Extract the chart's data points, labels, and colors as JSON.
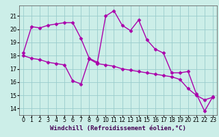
{
  "xlabel": "Windchill (Refroidissement éolien,°C)",
  "hours": [
    0,
    1,
    2,
    3,
    4,
    5,
    6,
    7,
    8,
    9,
    10,
    11,
    12,
    13,
    14,
    15,
    16,
    17,
    18,
    19,
    20,
    21,
    22,
    23
  ],
  "line1": [
    18.2,
    20.2,
    20.1,
    20.3,
    20.4,
    20.5,
    20.5,
    19.3,
    17.8,
    17.5,
    21.0,
    21.4,
    20.3,
    19.9,
    20.7,
    19.2,
    18.5,
    18.2,
    16.7,
    16.7,
    16.8,
    15.1,
    13.8,
    14.9
  ],
  "line2": [
    18.0,
    17.8,
    17.7,
    17.5,
    17.4,
    17.3,
    16.1,
    15.85,
    17.75,
    17.4,
    17.3,
    17.2,
    17.0,
    16.9,
    16.8,
    16.7,
    16.6,
    16.5,
    16.4,
    16.2,
    15.5,
    15.0,
    14.65,
    14.85
  ],
  "line_color": "#aa00aa",
  "bg_color": "#cceee8",
  "grid_color": "#99cccc",
  "ylim_min": 13.5,
  "ylim_max": 21.8,
  "yticks": [
    14,
    15,
    16,
    17,
    18,
    19,
    20,
    21
  ],
  "marker": "D",
  "markersize": 2.5,
  "linewidth": 1.0,
  "tick_fontsize": 5.8,
  "xlabel_fontsize": 6.5
}
